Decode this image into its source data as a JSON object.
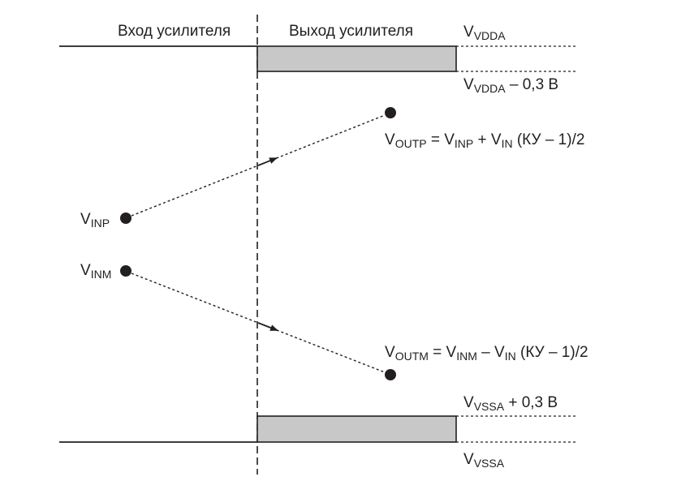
{
  "colors": {
    "ink": "#231f20",
    "band_fill": "#c8c8c8",
    "background": "#ffffff"
  },
  "headers": {
    "input": "Вход усилителя",
    "output": "Выход усилителя"
  },
  "rails": {
    "vdda": {
      "main": "V",
      "sub": "VDDA"
    },
    "vdda_minus": {
      "main": "V",
      "sub": "VDDA",
      "suffix": " – 0,3 В"
    },
    "vssa_plus": {
      "main": "V",
      "sub": "VSSA",
      "suffix": " + 0,3 В"
    },
    "vssa": {
      "main": "V",
      "sub": "VSSA"
    }
  },
  "inputs": {
    "inp": {
      "main": "V",
      "sub": "INP"
    },
    "inm": {
      "main": "V",
      "sub": "INM"
    }
  },
  "formulas": {
    "outp": {
      "v1": "V",
      "s1": "OUTP",
      "eq": " = V",
      "s2": "INP",
      "op": " +  V",
      "s3": "IN",
      "tail": " (КУ – 1)/2"
    },
    "outm": {
      "v1": "V",
      "s1": "OUTM",
      "eq": " = V",
      "s2": "INM",
      "op": " – V",
      "s3": "IN",
      "tail": " (КУ – 1)/2"
    }
  }
}
